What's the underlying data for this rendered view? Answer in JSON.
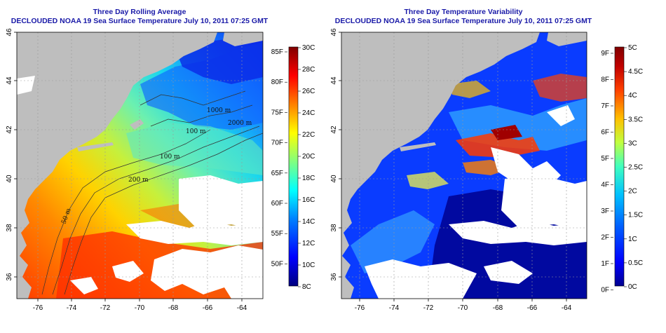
{
  "panels": [
    {
      "id": "sst",
      "title_line1": "Three Day Rolling Average",
      "title_line2": "DECLOUDED NOAA 19 Sea Surface Temperature July 10, 2011 07:25 GMT",
      "colorbar_f_labels": [
        "85F",
        "80F",
        "75F",
        "70F",
        "65F",
        "60F",
        "55F",
        "50F"
      ],
      "colorbar_c_labels": [
        "30C",
        "28C",
        "26C",
        "24C",
        "22C",
        "20C",
        "18C",
        "16C",
        "14C",
        "12C",
        "10C",
        "8C"
      ],
      "contour_labels": [
        "100 m",
        "200 m",
        "50 m",
        "100 m",
        "2000 m",
        "1000 m"
      ]
    },
    {
      "id": "variability",
      "title_line1": "Three Day Temperature Variability",
      "title_line2": "DECLOUDED NOAA 19 Sea Surface Temperature July 10, 2011 07:25 GMT",
      "colorbar_f_labels": [
        "9F",
        "8F",
        "7F",
        "6F",
        "5F",
        "4F",
        "3F",
        "2F",
        "1F",
        "0F"
      ],
      "colorbar_c_labels": [
        "5C",
        "4.5C",
        "4C",
        "3.5C",
        "3C",
        "2.5C",
        "2C",
        "1.5C",
        "1C",
        "0.5C",
        "0C"
      ]
    }
  ],
  "x_ticks": [
    "-76",
    "-74",
    "-72",
    "-70",
    "-68",
    "-66",
    "-64"
  ],
  "y_ticks": [
    "36",
    "38",
    "40",
    "42",
    "44",
    "46"
  ],
  "colors": {
    "land": "#bebebe",
    "cloud": "#ffffff",
    "title": "#1a1aa8",
    "sst_scale": [
      "#00007f",
      "#0000ff",
      "#0080ff",
      "#00ffff",
      "#80ff80",
      "#ffff00",
      "#ff8000",
      "#ff0000",
      "#7f0000"
    ],
    "var_scale": [
      "#00008f",
      "#0000ff",
      "#0060ff",
      "#00c0ff",
      "#40ffbf",
      "#c0ff40",
      "#ffc000",
      "#ff4000",
      "#c00000",
      "#800000"
    ]
  }
}
